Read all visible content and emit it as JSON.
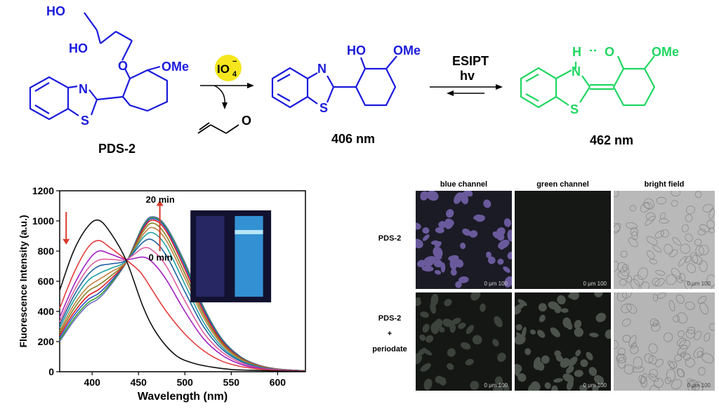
{
  "scheme": {
    "compound1": {
      "label": "PDS-2",
      "ho_top": "HO",
      "ho_mid": "HO",
      "o": "O",
      "n": "N",
      "s": "S",
      "ome": "OMe"
    },
    "reagent": {
      "main": "IO",
      "sub": "4",
      "sup": "−"
    },
    "byproduct": {
      "o": "O"
    },
    "compound2": {
      "ho": "HO",
      "ome": "OMe",
      "n": "N",
      "s": "S",
      "caption": "406 nm"
    },
    "esipt": {
      "line1": "ESIPT",
      "line2": "hv"
    },
    "compound3": {
      "h": "H",
      "o": "O",
      "ome": "OMe",
      "n": "N",
      "s": "S",
      "caption": "462 nm"
    },
    "colors": {
      "blue": "#1a1adc",
      "green": "#1ed760",
      "red": "#e8262b",
      "reagent": "#f5e61e"
    }
  },
  "chart_data": {
    "type": "line",
    "xlabel": "Wavelength (nm)",
    "ylabel": "Fluorescence Intensity (a.u.)",
    "xlim": [
      365,
      630
    ],
    "ylim": [
      0,
      1200
    ],
    "xticks": [
      400,
      450,
      500,
      550,
      600
    ],
    "yticks": [
      0,
      200,
      400,
      600,
      800,
      1000,
      1200
    ],
    "annotations": {
      "top_time": "20 min",
      "bottom_time": "0 min"
    },
    "isosbestic_point": [
      437,
      730
    ],
    "series": [
      {
        "color": "#111111",
        "x": [
          365,
          380,
          395,
          407,
          420,
          437,
          455,
          470,
          490,
          510,
          530,
          550,
          570,
          600,
          630
        ],
        "y": [
          540,
          800,
          960,
          1005,
          920,
          735,
          430,
          250,
          110,
          55,
          30,
          15,
          10,
          5,
          2
        ]
      },
      {
        "color": "#e23b3b",
        "x": [
          365,
          380,
          395,
          407,
          420,
          437,
          452,
          465,
          480,
          500,
          520,
          540,
          560,
          580,
          600,
          630
        ],
        "y": [
          420,
          650,
          820,
          870,
          820,
          740,
          660,
          540,
          400,
          250,
          140,
          70,
          35,
          18,
          8,
          3
        ]
      },
      {
        "color": "#a020c0",
        "x": [
          365,
          380,
          395,
          407,
          420,
          437,
          455,
          466,
          480,
          500,
          520,
          540,
          560,
          580,
          600,
          630
        ],
        "y": [
          360,
          570,
          730,
          800,
          780,
          745,
          760,
          720,
          610,
          400,
          220,
          110,
          50,
          22,
          10,
          4
        ]
      },
      {
        "color": "#e060a0",
        "x": [
          365,
          380,
          395,
          407,
          420,
          437,
          455,
          466,
          480,
          500,
          520,
          540,
          560,
          580,
          600,
          630
        ],
        "y": [
          330,
          530,
          680,
          740,
          745,
          745,
          820,
          800,
          700,
          470,
          260,
          130,
          60,
          25,
          12,
          4
        ]
      },
      {
        "color": "#2060a0",
        "x": [
          365,
          380,
          395,
          407,
          420,
          437,
          455,
          466,
          480,
          500,
          520,
          540,
          560,
          580,
          600,
          630
        ],
        "y": [
          310,
          500,
          640,
          700,
          715,
          740,
          860,
          870,
          770,
          530,
          300,
          150,
          70,
          30,
          13,
          5
        ]
      },
      {
        "color": "#20a0a0",
        "x": [
          365,
          380,
          395,
          407,
          420,
          437,
          455,
          466,
          480,
          500,
          520,
          540,
          560,
          580,
          600,
          630
        ],
        "y": [
          290,
          470,
          600,
          650,
          685,
          735,
          890,
          920,
          830,
          580,
          330,
          165,
          75,
          32,
          14,
          5
        ]
      },
      {
        "color": "#c08040",
        "x": [
          365,
          380,
          395,
          407,
          420,
          437,
          455,
          466,
          480,
          500,
          520,
          540,
          560,
          580,
          600,
          630
        ],
        "y": [
          270,
          440,
          560,
          610,
          660,
          730,
          910,
          955,
          870,
          620,
          360,
          180,
          82,
          35,
          15,
          5
        ]
      },
      {
        "color": "#808020",
        "x": [
          365,
          380,
          395,
          407,
          420,
          437,
          455,
          466,
          480,
          500,
          520,
          540,
          560,
          580,
          600,
          630
        ],
        "y": [
          255,
          415,
          530,
          575,
          635,
          730,
          930,
          985,
          900,
          650,
          380,
          190,
          88,
          37,
          16,
          6
        ]
      },
      {
        "color": "#e02020",
        "x": [
          365,
          380,
          395,
          407,
          420,
          437,
          455,
          466,
          480,
          500,
          520,
          540,
          560,
          580,
          600,
          630
        ],
        "y": [
          240,
          390,
          500,
          545,
          615,
          728,
          945,
          1005,
          930,
          680,
          400,
          200,
          92,
          40,
          17,
          6
        ]
      },
      {
        "color": "#3050d0",
        "x": [
          365,
          380,
          395,
          407,
          420,
          437,
          455,
          466,
          480,
          500,
          520,
          540,
          560,
          580,
          600,
          630
        ],
        "y": [
          225,
          370,
          475,
          520,
          598,
          728,
          955,
          1015,
          945,
          700,
          415,
          208,
          95,
          41,
          18,
          6
        ]
      },
      {
        "color": "#30a030",
        "x": [
          365,
          380,
          395,
          407,
          420,
          437,
          455,
          466,
          480,
          500,
          520,
          540,
          560,
          580,
          600,
          630
        ],
        "y": [
          210,
          350,
          455,
          500,
          585,
          728,
          965,
          1022,
          955,
          715,
          425,
          214,
          98,
          42,
          18,
          6
        ]
      },
      {
        "color": "#7070c0",
        "x": [
          365,
          380,
          395,
          407,
          420,
          437,
          455,
          466,
          480,
          500,
          520,
          540,
          560,
          580,
          600,
          630
        ],
        "y": [
          200,
          335,
          440,
          485,
          575,
          728,
          972,
          1028,
          962,
          725,
          432,
          218,
          100,
          43,
          18,
          6
        ]
      }
    ]
  },
  "microscopy": {
    "col_headers": [
      "blue channel",
      "green channel",
      "bright field"
    ],
    "row1_label": "PDS-2",
    "row2_label": [
      "PDS-2",
      "+",
      "periodate"
    ],
    "scale_text": "0   μm 100"
  }
}
